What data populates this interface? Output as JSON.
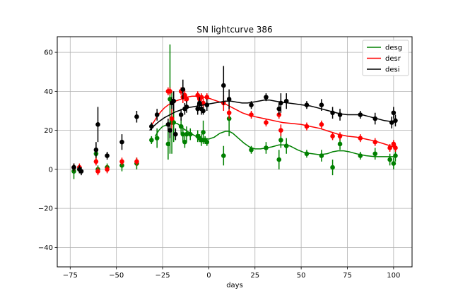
{
  "chart_data": {
    "type": "scatter",
    "title": "SN lightcurve 386",
    "xlabel": "days",
    "ylabel": "",
    "xlim": [
      -82,
      110
    ],
    "ylim": [
      -50,
      68
    ],
    "xticks": [
      -75,
      -50,
      -25,
      0,
      25,
      50,
      75,
      100
    ],
    "yticks": [
      -40,
      -20,
      0,
      20,
      40,
      60
    ],
    "xtick_labels": [
      "−75",
      "−50",
      "−25",
      "0",
      "25",
      "50",
      "75",
      "100"
    ],
    "ytick_labels": [
      "−40",
      "−20",
      "0",
      "20",
      "40",
      "60"
    ],
    "grid": true,
    "legend_position": "top-right",
    "series": [
      {
        "name": "desg",
        "color": "#008000",
        "points": [
          {
            "x": -73,
            "y": -1,
            "err": 4
          },
          {
            "x": -70,
            "y": 0,
            "err": 2
          },
          {
            "x": -61,
            "y": 8,
            "err": 3
          },
          {
            "x": -60,
            "y": 0,
            "err": 2
          },
          {
            "x": -55,
            "y": 1,
            "err": 2
          },
          {
            "x": -47,
            "y": 2,
            "err": 3
          },
          {
            "x": -39,
            "y": 3,
            "err": 3
          },
          {
            "x": -31,
            "y": 15,
            "err": 2
          },
          {
            "x": -28,
            "y": 16,
            "err": 5
          },
          {
            "x": -22,
            "y": 13,
            "err": 8
          },
          {
            "x": -21,
            "y": 36,
            "err": 28
          },
          {
            "x": -20,
            "y": 24,
            "err": 16
          },
          {
            "x": -19,
            "y": 24,
            "err": 10
          },
          {
            "x": -15,
            "y": 22,
            "err": 4
          },
          {
            "x": -14,
            "y": 18,
            "err": 4
          },
          {
            "x": -13,
            "y": 14,
            "err": 3
          },
          {
            "x": -12,
            "y": 18,
            "err": 4
          },
          {
            "x": -10,
            "y": 18,
            "err": 3
          },
          {
            "x": -6,
            "y": 17,
            "err": 3
          },
          {
            "x": -5,
            "y": 16,
            "err": 2
          },
          {
            "x": -4,
            "y": 15,
            "err": 3
          },
          {
            "x": -3,
            "y": 19,
            "err": 6
          },
          {
            "x": -2,
            "y": 15,
            "err": 2
          },
          {
            "x": -1,
            "y": 14,
            "err": 2
          },
          {
            "x": 8,
            "y": 7,
            "err": 5
          },
          {
            "x": 11,
            "y": 26,
            "err": 9
          },
          {
            "x": 23,
            "y": 10,
            "err": 2
          },
          {
            "x": 31,
            "y": 11,
            "err": 3
          },
          {
            "x": 38,
            "y": 5,
            "err": 5
          },
          {
            "x": 39,
            "y": 15,
            "err": 4
          },
          {
            "x": 42,
            "y": 12,
            "err": 4
          },
          {
            "x": 53,
            "y": 8,
            "err": 2
          },
          {
            "x": 61,
            "y": 7,
            "err": 3
          },
          {
            "x": 67,
            "y": 1,
            "err": 4
          },
          {
            "x": 71,
            "y": 13,
            "err": 3
          },
          {
            "x": 82,
            "y": 7,
            "err": 2
          },
          {
            "x": 90,
            "y": 8,
            "err": 3
          },
          {
            "x": 98,
            "y": 5,
            "err": 3
          },
          {
            "x": 100,
            "y": 3,
            "err": 3
          },
          {
            "x": 101,
            "y": 7,
            "err": 3
          }
        ],
        "curve": [
          [
            -29,
            17
          ],
          [
            -27,
            20
          ],
          [
            -25,
            22
          ],
          [
            -22,
            23
          ],
          [
            -20,
            24
          ],
          [
            -17,
            23.5
          ],
          [
            -14,
            21
          ],
          [
            -10,
            18.5
          ],
          [
            -7,
            17
          ],
          [
            -4,
            16
          ],
          [
            0,
            15.5
          ],
          [
            3,
            16.5
          ],
          [
            6,
            18.5
          ],
          [
            9,
            19.5
          ],
          [
            11,
            19.5
          ],
          [
            13,
            18.5
          ],
          [
            16,
            16
          ],
          [
            19,
            13.5
          ],
          [
            22,
            11.5
          ],
          [
            25,
            10.5
          ],
          [
            28,
            10.5
          ],
          [
            31,
            11
          ],
          [
            34,
            11.5
          ],
          [
            38,
            12.5
          ],
          [
            41,
            12.5
          ],
          [
            44,
            12
          ],
          [
            48,
            10
          ],
          [
            52,
            8.5
          ],
          [
            56,
            8
          ],
          [
            60,
            7.5
          ],
          [
            64,
            8
          ],
          [
            67,
            9
          ],
          [
            70,
            9.5
          ],
          [
            73,
            9.5
          ],
          [
            76,
            9
          ],
          [
            80,
            8
          ],
          [
            85,
            7
          ],
          [
            90,
            6.5
          ],
          [
            95,
            6.5
          ],
          [
            100,
            6.5
          ]
        ]
      },
      {
        "name": "desr",
        "color": "#ff0000",
        "points": [
          {
            "x": -73,
            "y": 1,
            "err": 2
          },
          {
            "x": -70,
            "y": 1,
            "err": 2
          },
          {
            "x": -61,
            "y": 4,
            "err": 2
          },
          {
            "x": -60,
            "y": -1,
            "err": 2
          },
          {
            "x": -55,
            "y": 0,
            "err": 2
          },
          {
            "x": -47,
            "y": 4,
            "err": 2
          },
          {
            "x": -39,
            "y": 4,
            "err": 2
          },
          {
            "x": -22,
            "y": 40,
            "err": 2
          },
          {
            "x": -21,
            "y": 40,
            "err": 2
          },
          {
            "x": -20,
            "y": 26,
            "err": 5
          },
          {
            "x": -19,
            "y": 35,
            "err": 5
          },
          {
            "x": -15,
            "y": 40,
            "err": 2
          },
          {
            "x": -14,
            "y": 37,
            "err": 3
          },
          {
            "x": -13,
            "y": 38,
            "err": 3
          },
          {
            "x": -12,
            "y": 36,
            "err": 2
          },
          {
            "x": -6,
            "y": 38,
            "err": 2
          },
          {
            "x": -5,
            "y": 36,
            "err": 2
          },
          {
            "x": -4,
            "y": 37,
            "err": 2
          },
          {
            "x": -3,
            "y": 34,
            "err": 3
          },
          {
            "x": -1,
            "y": 37,
            "err": 2
          },
          {
            "x": 8,
            "y": 34,
            "err": 4
          },
          {
            "x": 11,
            "y": 29,
            "err": 3
          },
          {
            "x": 23,
            "y": 28,
            "err": 2
          },
          {
            "x": 31,
            "y": 24,
            "err": 2
          },
          {
            "x": 38,
            "y": 28,
            "err": 2
          },
          {
            "x": 39,
            "y": 20,
            "err": 3
          },
          {
            "x": 53,
            "y": 22,
            "err": 2
          },
          {
            "x": 61,
            "y": 23,
            "err": 2
          },
          {
            "x": 67,
            "y": 17,
            "err": 2
          },
          {
            "x": 71,
            "y": 17,
            "err": 2
          },
          {
            "x": 82,
            "y": 16,
            "err": 2
          },
          {
            "x": 90,
            "y": 14,
            "err": 2
          },
          {
            "x": 98,
            "y": 11,
            "err": 2
          },
          {
            "x": 100,
            "y": 13,
            "err": 2
          },
          {
            "x": 101,
            "y": 11,
            "err": 2
          }
        ],
        "curve": [
          [
            -32,
            22
          ],
          [
            -30,
            24
          ],
          [
            -28,
            27
          ],
          [
            -26,
            29.5
          ],
          [
            -24,
            31.5
          ],
          [
            -22,
            33
          ],
          [
            -20,
            34
          ],
          [
            -18,
            35
          ],
          [
            -15,
            36
          ],
          [
            -12,
            37
          ],
          [
            -9,
            37.5
          ],
          [
            -6,
            37.5
          ],
          [
            -3,
            37
          ],
          [
            0,
            36.5
          ],
          [
            3,
            35.5
          ],
          [
            6,
            34.5
          ],
          [
            9,
            33.5
          ],
          [
            12,
            32
          ],
          [
            15,
            30.5
          ],
          [
            18,
            29
          ],
          [
            21,
            28
          ],
          [
            25,
            27
          ],
          [
            30,
            26
          ],
          [
            35,
            25
          ],
          [
            40,
            24
          ],
          [
            45,
            23.5
          ],
          [
            50,
            23
          ],
          [
            55,
            22
          ],
          [
            60,
            21
          ],
          [
            65,
            19.5
          ],
          [
            70,
            18
          ],
          [
            75,
            17
          ],
          [
            80,
            16.5
          ],
          [
            85,
            15.5
          ],
          [
            90,
            14.5
          ],
          [
            95,
            13
          ],
          [
            100,
            11.5
          ]
        ]
      },
      {
        "name": "desi",
        "color": "#000000",
        "points": [
          {
            "x": -73,
            "y": 1,
            "err": 2
          },
          {
            "x": -70,
            "y": 0,
            "err": 2
          },
          {
            "x": -69,
            "y": -1,
            "err": 2
          },
          {
            "x": -61,
            "y": 10,
            "err": 4
          },
          {
            "x": -60,
            "y": 23,
            "err": 9
          },
          {
            "x": -55,
            "y": 7,
            "err": 2
          },
          {
            "x": -47,
            "y": 14,
            "err": 4
          },
          {
            "x": -39,
            "y": 27,
            "err": 3
          },
          {
            "x": -31,
            "y": 22,
            "err": 2
          },
          {
            "x": -28,
            "y": 28,
            "err": 3
          },
          {
            "x": -22,
            "y": 23,
            "err": 3
          },
          {
            "x": -21,
            "y": 20,
            "err": 4
          },
          {
            "x": -20,
            "y": 34,
            "err": 3
          },
          {
            "x": -19,
            "y": 35,
            "err": 5
          },
          {
            "x": -18,
            "y": 18,
            "err": 3
          },
          {
            "x": -15,
            "y": 28,
            "err": 3
          },
          {
            "x": -14,
            "y": 41,
            "err": 5
          },
          {
            "x": -13,
            "y": 31,
            "err": 3
          },
          {
            "x": -12,
            "y": 32,
            "err": 3
          },
          {
            "x": -6,
            "y": 31,
            "err": 3
          },
          {
            "x": -5,
            "y": 34,
            "err": 3
          },
          {
            "x": -4,
            "y": 31,
            "err": 3
          },
          {
            "x": -3,
            "y": 30,
            "err": 2
          },
          {
            "x": -1,
            "y": 33,
            "err": 3
          },
          {
            "x": 8,
            "y": 43,
            "err": 10
          },
          {
            "x": 11,
            "y": 36,
            "err": 5
          },
          {
            "x": 23,
            "y": 33,
            "err": 2
          },
          {
            "x": 31,
            "y": 37,
            "err": 2
          },
          {
            "x": 38,
            "y": 31,
            "err": 3
          },
          {
            "x": 39,
            "y": 34,
            "err": 5
          },
          {
            "x": 42,
            "y": 35,
            "err": 4
          },
          {
            "x": 53,
            "y": 33,
            "err": 2
          },
          {
            "x": 61,
            "y": 33,
            "err": 3
          },
          {
            "x": 67,
            "y": 29,
            "err": 3
          },
          {
            "x": 71,
            "y": 28,
            "err": 3
          },
          {
            "x": 82,
            "y": 28,
            "err": 2
          },
          {
            "x": 90,
            "y": 26,
            "err": 3
          },
          {
            "x": 99,
            "y": 24,
            "err": 3
          },
          {
            "x": 100,
            "y": 29,
            "err": 3
          },
          {
            "x": 101,
            "y": 25,
            "err": 3
          }
        ],
        "curve": [
          [
            -32,
            20
          ],
          [
            -30,
            22
          ],
          [
            -27,
            24.5
          ],
          [
            -24,
            26.5
          ],
          [
            -21,
            28
          ],
          [
            -18,
            29.5
          ],
          [
            -15,
            30.5
          ],
          [
            -12,
            31.5
          ],
          [
            -9,
            32
          ],
          [
            -6,
            32.5
          ],
          [
            -3,
            33
          ],
          [
            0,
            33.5
          ],
          [
            3,
            34
          ],
          [
            6,
            34.5
          ],
          [
            9,
            35
          ],
          [
            12,
            35
          ],
          [
            15,
            34.5
          ],
          [
            18,
            34
          ],
          [
            21,
            34
          ],
          [
            24,
            34.5
          ],
          [
            27,
            35
          ],
          [
            30,
            35.5
          ],
          [
            33,
            35.5
          ],
          [
            36,
            35
          ],
          [
            39,
            34.5
          ],
          [
            43,
            34
          ],
          [
            47,
            33.5
          ],
          [
            51,
            33
          ],
          [
            55,
            32.5
          ],
          [
            59,
            31.5
          ],
          [
            63,
            30.5
          ],
          [
            67,
            29.5
          ],
          [
            71,
            28.5
          ],
          [
            75,
            28
          ],
          [
            79,
            28
          ],
          [
            83,
            28
          ],
          [
            87,
            27
          ],
          [
            91,
            26
          ],
          [
            95,
            25
          ],
          [
            99,
            24.5
          ],
          [
            101,
            25
          ]
        ]
      }
    ]
  }
}
